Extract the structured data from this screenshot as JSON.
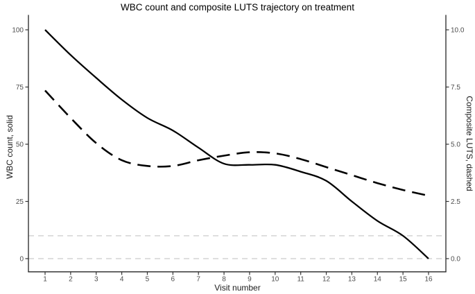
{
  "chart_data": {
    "type": "line",
    "title": "WBC count and composite LUTS trajectory on treatment",
    "xlabel": "Visit number",
    "x": [
      1,
      2,
      3,
      4,
      5,
      6,
      7,
      8,
      9,
      10,
      11,
      12,
      13,
      14,
      15,
      16
    ],
    "x_tick_labels": [
      "1",
      "2",
      "3",
      "4",
      "5",
      "6",
      "7",
      "8",
      "9",
      "10",
      "11",
      "12",
      "13",
      "14",
      "15",
      "16"
    ],
    "left_axis": {
      "label": "WBC count, solid",
      "ticks": [
        0,
        25,
        50,
        75,
        100
      ],
      "tick_labels": [
        "0",
        "25",
        "50",
        "75",
        "100"
      ],
      "range": [
        0,
        100
      ]
    },
    "right_axis": {
      "label": "Composite LUTS, dashed",
      "ticks": [
        0,
        2.5,
        5,
        7.5,
        10
      ],
      "tick_labels": [
        "0.0",
        "2.5",
        "5.0",
        "7.5",
        "10.0"
      ],
      "range": [
        0,
        10
      ]
    },
    "series": [
      {
        "name": "WBC count",
        "axis": "left",
        "line_style": "solid",
        "color": "#000000",
        "values": [
          100,
          89,
          79,
          69.5,
          61.5,
          56,
          48.5,
          41.5,
          41,
          41,
          38,
          34,
          25,
          16.5,
          10,
          0
        ]
      },
      {
        "name": "Composite LUTS",
        "axis": "right",
        "line_style": "dashed",
        "color": "#000000",
        "values": [
          7.35,
          6.15,
          5.05,
          4.3,
          4.05,
          4.05,
          4.3,
          4.5,
          4.65,
          4.6,
          4.35,
          4.0,
          3.65,
          3.3,
          3.0,
          2.75
        ]
      }
    ],
    "reference_lines": [
      {
        "axis": "right",
        "value": 1.0,
        "style": "dashed",
        "color": "#bcbcbc"
      },
      {
        "axis": "right",
        "value": 0.0,
        "style": "dashed",
        "color": "#bcbcbc"
      }
    ],
    "legend": "none",
    "grid": "off",
    "panel_border_color": "#333333"
  }
}
